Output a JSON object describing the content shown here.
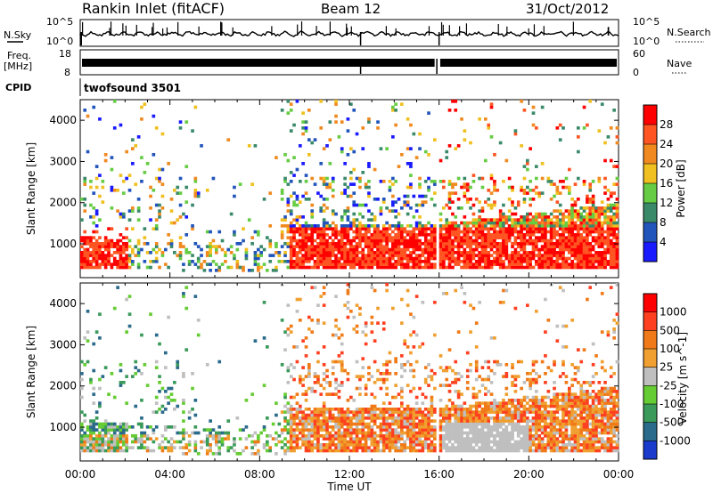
{
  "header": {
    "station": "Rankin Inlet (fitACF)",
    "beam": "Beam 12",
    "date": "31/Oct/2012"
  },
  "strips": {
    "nsky_label": "N.Sky",
    "nsky_ticks": [
      "10^5",
      "10^0"
    ],
    "nsearch_label": "N.Search",
    "nsearch_ticks": [
      "10^5",
      "10^0"
    ],
    "freq_label_1": "Freq.",
    "freq_label_2": "[MHz]",
    "freq_ticks": [
      "18",
      "8"
    ],
    "nave_label": "Nave",
    "nave_ticks": [
      "60",
      "0"
    ],
    "cpid_label": "CPID",
    "cpid_value": "twofsound 3501"
  },
  "chart_data": [
    {
      "type": "heatmap",
      "panel": "power",
      "ylabel": "Slant Range [km]",
      "xlabel": "",
      "yticks": [
        1000,
        2000,
        3000,
        4000
      ],
      "ylim": [
        180,
        4500
      ],
      "xlim_hours": [
        0,
        24
      ],
      "colorbar_label": "Power [dB]",
      "colorbar_ticks": [
        "4",
        "8",
        "12",
        "16",
        "20",
        "24",
        "28"
      ],
      "colorbar_colors": [
        "#1a1aff",
        "#2255bb",
        "#3a8a6a",
        "#66cc44",
        "#f0c020",
        "#f08a20",
        "#ff5522",
        "#ff0000"
      ]
    },
    {
      "type": "heatmap",
      "panel": "velocity",
      "ylabel": "Slant Range [km]",
      "xlabel": "Time UT",
      "yticks": [
        1000,
        2000,
        3000,
        4000
      ],
      "ylim": [
        180,
        4500
      ],
      "xlim_hours": [
        0,
        24
      ],
      "xticks": [
        "00:00",
        "04:00",
        "08:00",
        "12:00",
        "16:00",
        "20:00",
        "00:00"
      ],
      "colorbar_label": "Velocity [m s^-1]",
      "colorbar_ticks": [
        "1000",
        "500",
        "100",
        "25",
        "-25",
        "-100",
        "-500",
        "-1000"
      ],
      "colorbar_colors": [
        "#1a3acc",
        "#2a6a8a",
        "#3a9a5a",
        "#66cc33",
        "#bfbfbf",
        "#f0a030",
        "#f07a18",
        "#ff4020",
        "#ff0000"
      ]
    }
  ]
}
